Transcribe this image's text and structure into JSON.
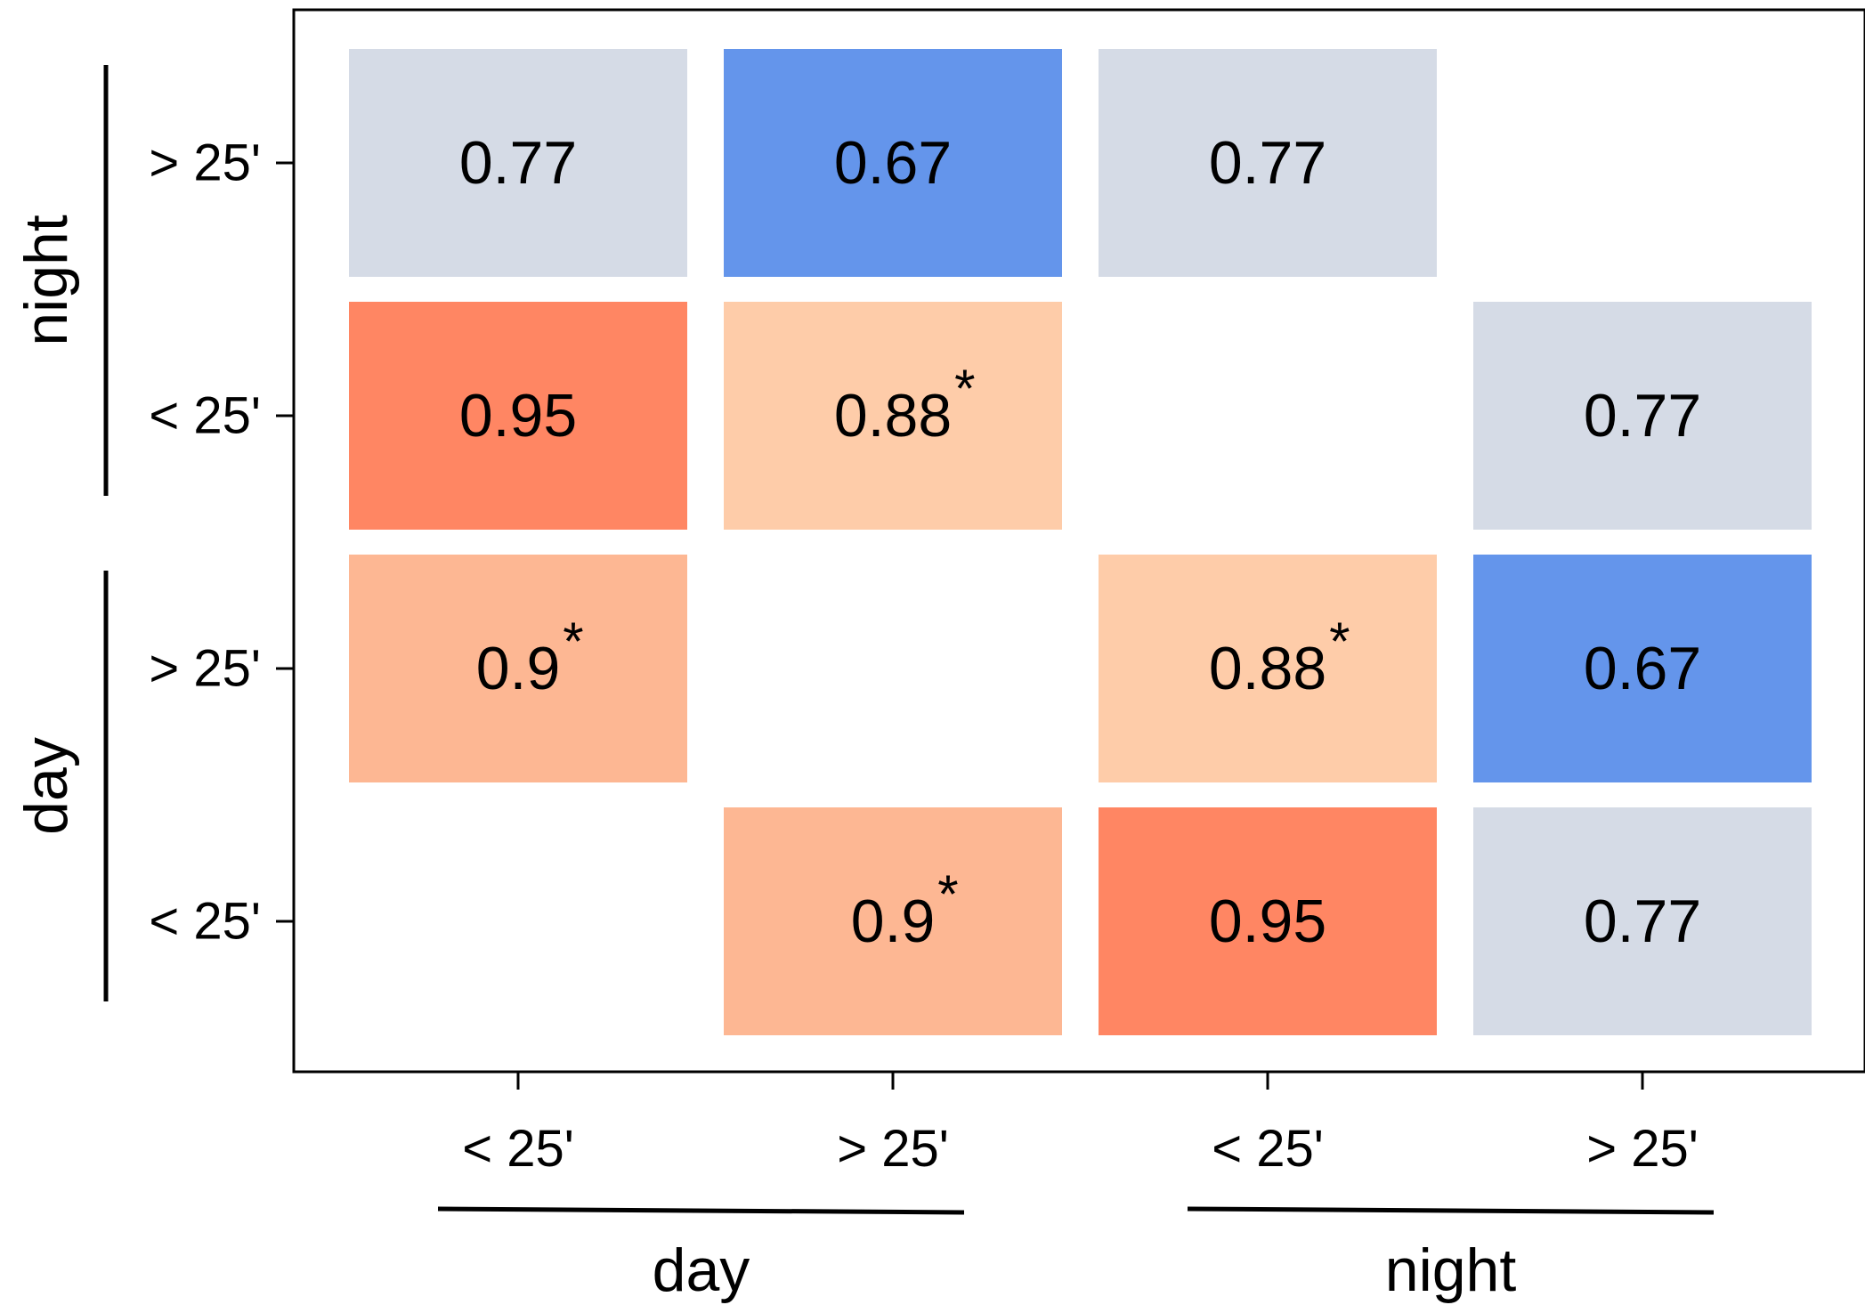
{
  "chart_data": {
    "type": "heatmap",
    "x_labels": [
      "< 25'",
      "> 25'",
      "< 25'",
      "> 25'"
    ],
    "y_labels": [
      "> 25'",
      "< 25'",
      "> 25'",
      "< 25'"
    ],
    "x_groups": [
      {
        "label": "day",
        "columns": [
          0,
          1
        ]
      },
      {
        "label": "night",
        "columns": [
          2,
          3
        ]
      }
    ],
    "y_groups": [
      {
        "label": "night",
        "rows": [
          0,
          1
        ]
      },
      {
        "label": "day",
        "rows": [
          2,
          3
        ]
      }
    ],
    "cells": [
      [
        {
          "value": 0.77,
          "label": "0.77",
          "sig": false
        },
        {
          "value": 0.67,
          "label": "0.67",
          "sig": false
        },
        {
          "value": 0.77,
          "label": "0.77",
          "sig": false
        },
        null
      ],
      [
        {
          "value": 0.95,
          "label": "0.95",
          "sig": false
        },
        {
          "value": 0.88,
          "label": "0.88",
          "sig": true
        },
        null,
        {
          "value": 0.77,
          "label": "0.77",
          "sig": false
        }
      ],
      [
        {
          "value": 0.9,
          "label": "0.9",
          "sig": true
        },
        null,
        {
          "value": 0.88,
          "label": "0.88",
          "sig": true
        },
        {
          "value": 0.67,
          "label": "0.67",
          "sig": false
        }
      ],
      [
        null,
        {
          "value": 0.9,
          "label": "0.9",
          "sig": true
        },
        {
          "value": 0.95,
          "label": "0.95",
          "sig": false
        },
        {
          "value": 0.77,
          "label": "0.77",
          "sig": false
        }
      ]
    ],
    "significance_marker": "*",
    "colors": {
      "0.67": "#6495eb",
      "0.77": "#d5dbe6",
      "0.88": "#fecca9",
      "0.9": "#fdb793",
      "0.95": "#ff8663"
    },
    "grid": false,
    "legend": "none"
  }
}
